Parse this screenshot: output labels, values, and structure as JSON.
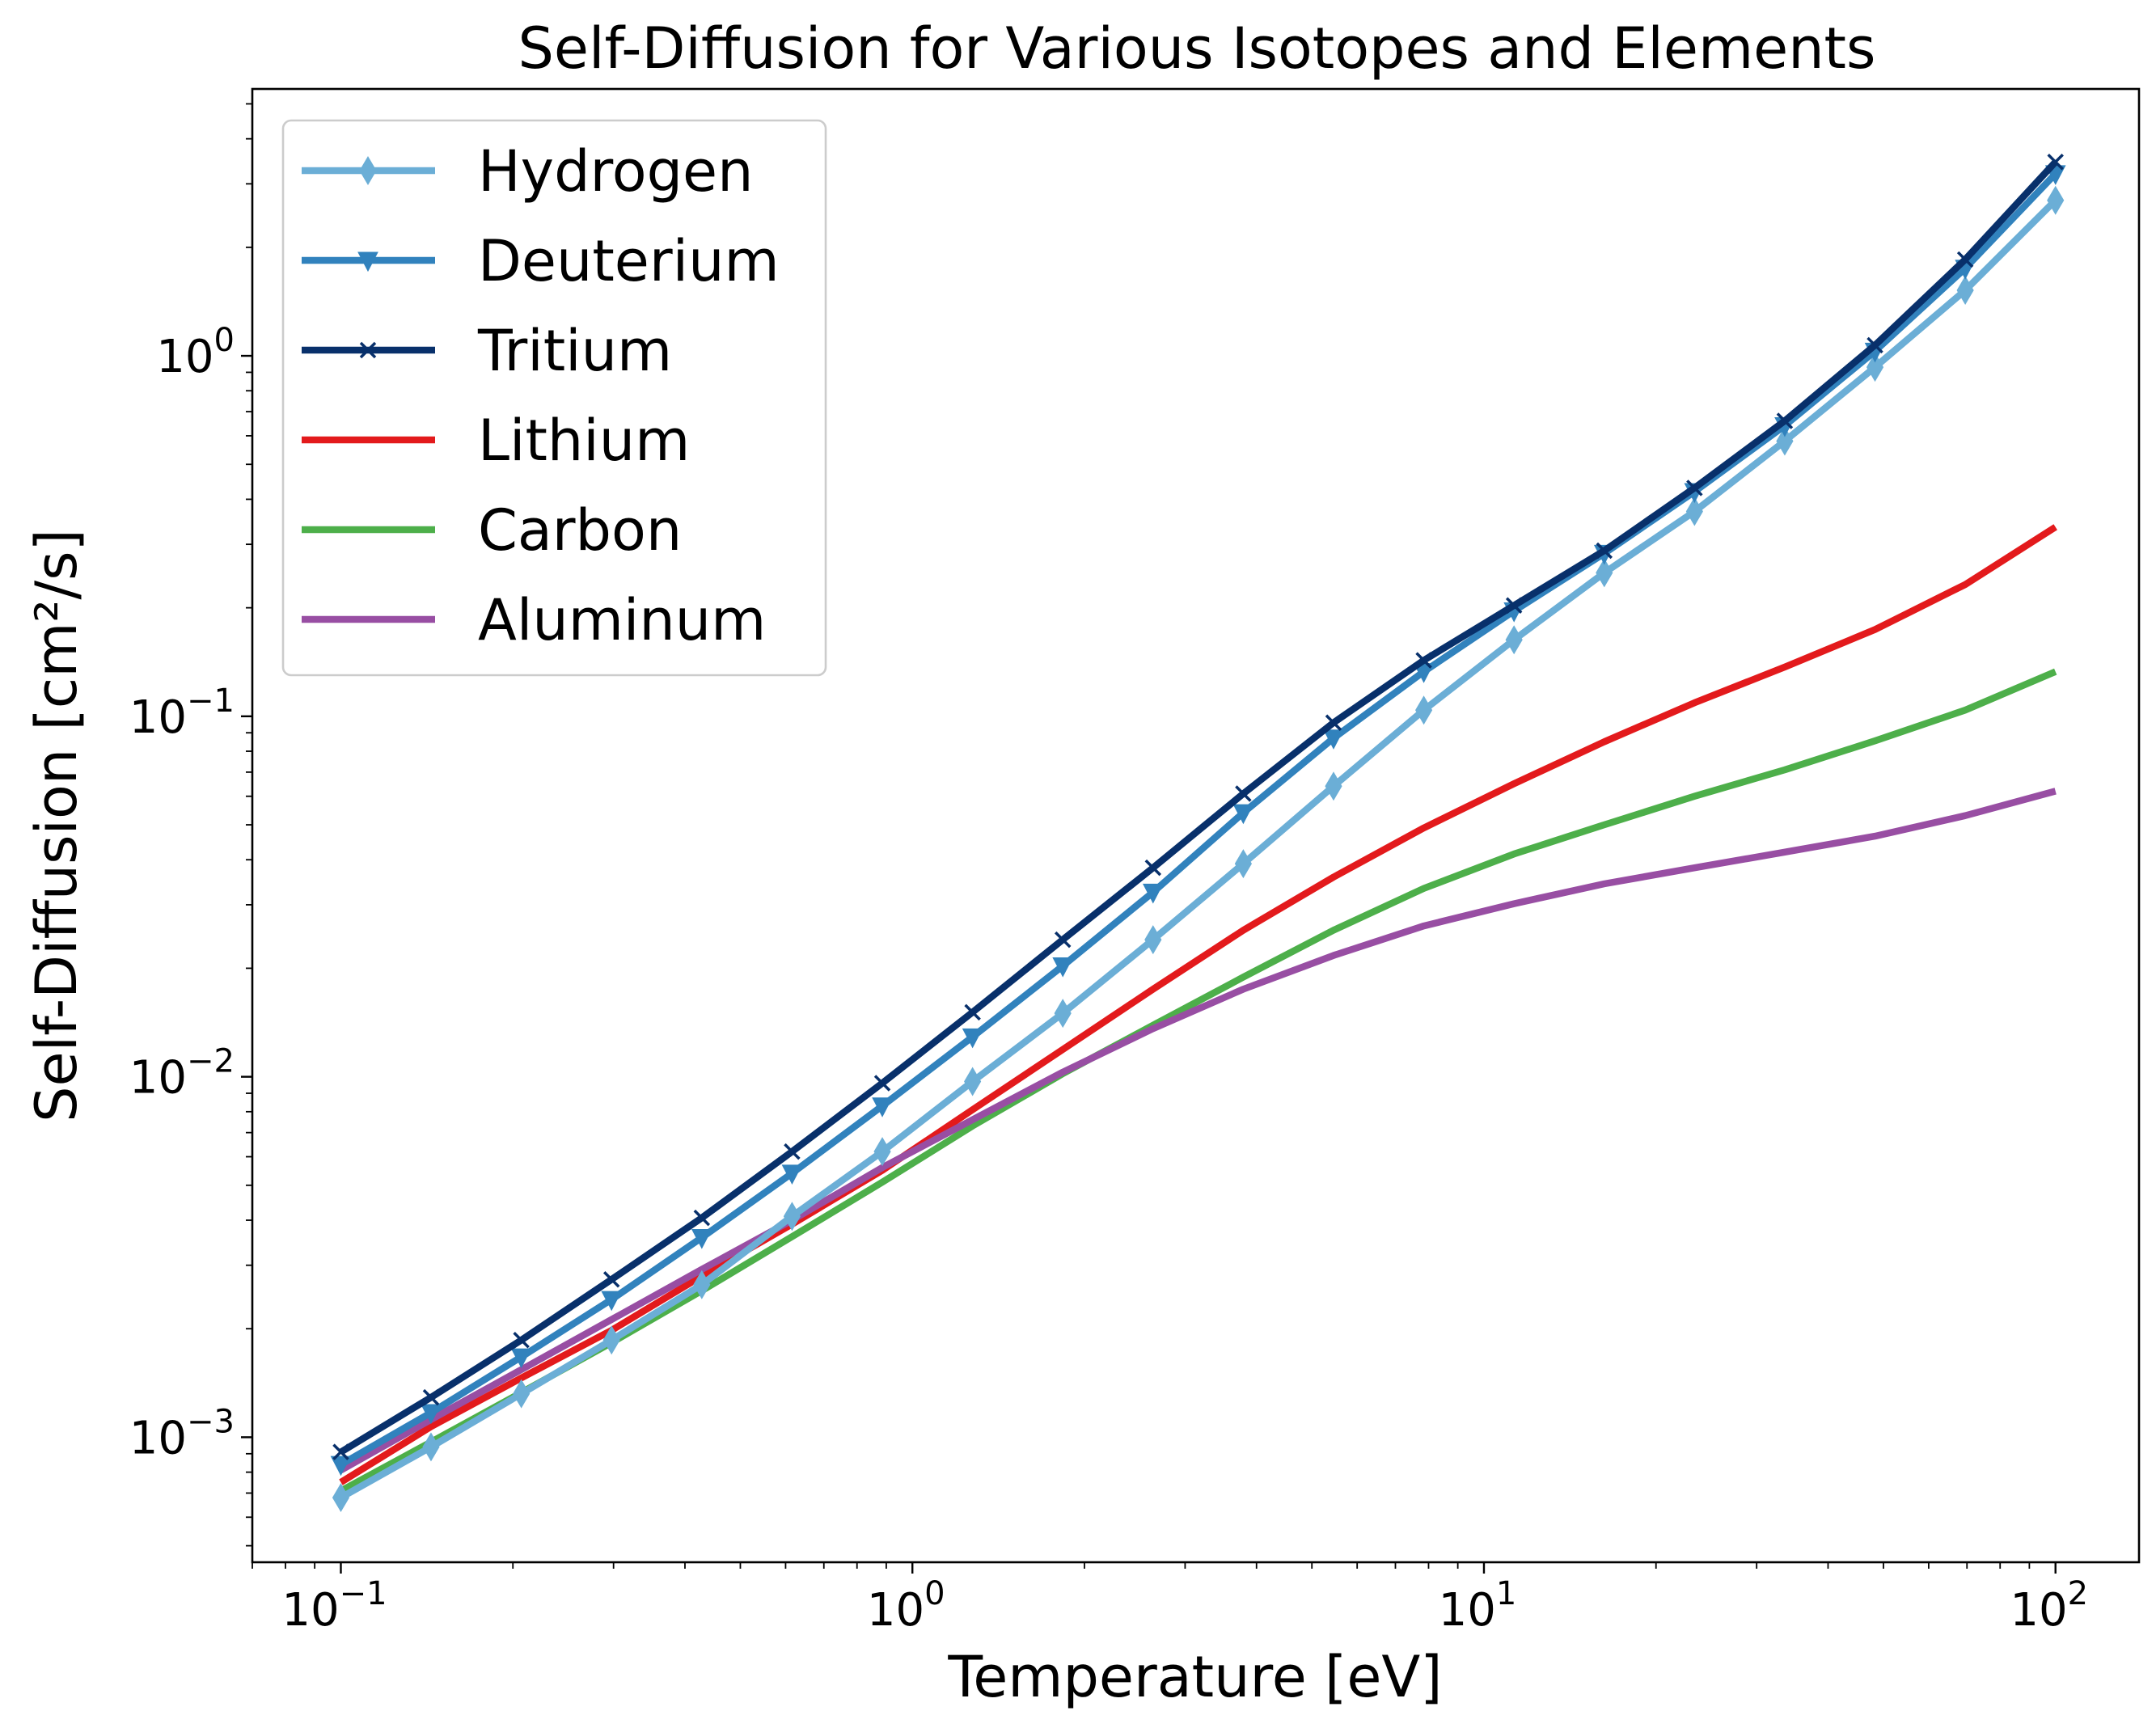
{
  "chart_data": {
    "type": "line",
    "title": "Self-Diffusion for Various Isotopes and Elements",
    "xlabel": "Temperature [eV]",
    "ylabel": "Self-Diffusion [cm²/s]",
    "xscale": "log",
    "yscale": "log",
    "xlim": [
      0.07,
      140
    ],
    "ylim": [
      0.00045,
      5.5
    ],
    "xticks": [
      {
        "value": 0.1,
        "base": "10",
        "exp": "−1"
      },
      {
        "value": 1,
        "base": "10",
        "exp": "0"
      },
      {
        "value": 10,
        "base": "10",
        "exp": "1"
      },
      {
        "value": 100,
        "base": "10",
        "exp": "2"
      }
    ],
    "yticks": [
      {
        "value": 0.001,
        "base": "10",
        "exp": "−3"
      },
      {
        "value": 0.01,
        "base": "10",
        "exp": "−2"
      },
      {
        "value": 0.1,
        "base": "10",
        "exp": "−1"
      },
      {
        "value": 1,
        "base": "10",
        "exp": "0"
      }
    ],
    "grid": false,
    "legend_position": "top-left",
    "x": [
      0.1,
      0.1438,
      0.2069,
      0.2976,
      0.4281,
      0.6158,
      0.8859,
      1.2743,
      1.833,
      2.6367,
      3.7927,
      5.4556,
      7.8476,
      11.2884,
      16.238,
      23.3572,
      33.5982,
      48.3293,
      69.5193,
      100.0
    ],
    "series": [
      {
        "name": "Hydrogen",
        "color": "#6baed6",
        "marker": "thin-diamond",
        "values": [
          0.00068,
          0.00094,
          0.00132,
          0.00186,
          0.00265,
          0.0041,
          0.0062,
          0.0097,
          0.015,
          0.024,
          0.039,
          0.064,
          0.104,
          0.163,
          0.25,
          0.37,
          0.58,
          0.93,
          1.52,
          2.7
        ]
      },
      {
        "name": "Deuterium",
        "color": "#3182bd",
        "marker": "triangle-down",
        "values": [
          0.00084,
          0.00117,
          0.00167,
          0.00241,
          0.00358,
          0.0054,
          0.0083,
          0.0129,
          0.0203,
          0.0325,
          0.054,
          0.087,
          0.133,
          0.196,
          0.283,
          0.42,
          0.64,
          1.03,
          1.75,
          3.2
        ]
      },
      {
        "name": "Tritium",
        "color": "#08306b",
        "marker": "x",
        "values": [
          0.00091,
          0.00129,
          0.00186,
          0.00274,
          0.00406,
          0.0062,
          0.0096,
          0.0151,
          0.024,
          0.038,
          0.061,
          0.096,
          0.143,
          0.203,
          0.288,
          0.43,
          0.66,
          1.07,
          1.85,
          3.45
        ]
      },
      {
        "name": "Lithium",
        "color": "#e31a1c",
        "marker": "none",
        "values": [
          0.00075,
          0.00107,
          0.00146,
          0.00198,
          0.0028,
          0.0039,
          0.0055,
          0.0081,
          0.0119,
          0.0175,
          0.0255,
          0.0358,
          0.049,
          0.065,
          0.085,
          0.109,
          0.137,
          0.174,
          0.232,
          0.335
        ]
      },
      {
        "name": "Carbon",
        "color": "#4daf4a",
        "marker": "none",
        "values": [
          0.00071,
          0.00097,
          0.00133,
          0.00183,
          0.00255,
          0.0036,
          0.0051,
          0.0073,
          0.0102,
          0.0139,
          0.0189,
          0.0255,
          0.0333,
          0.0415,
          0.05,
          0.06,
          0.071,
          0.0855,
          0.104,
          0.133
        ]
      },
      {
        "name": "Aluminum",
        "color": "#984ea3",
        "marker": "none",
        "values": [
          0.00081,
          0.00112,
          0.00154,
          0.00212,
          0.00292,
          0.004,
          0.0056,
          0.0076,
          0.0103,
          0.0136,
          0.0175,
          0.0217,
          0.0262,
          0.0302,
          0.0343,
          0.038,
          0.042,
          0.0465,
          0.053,
          0.062
        ]
      }
    ]
  }
}
